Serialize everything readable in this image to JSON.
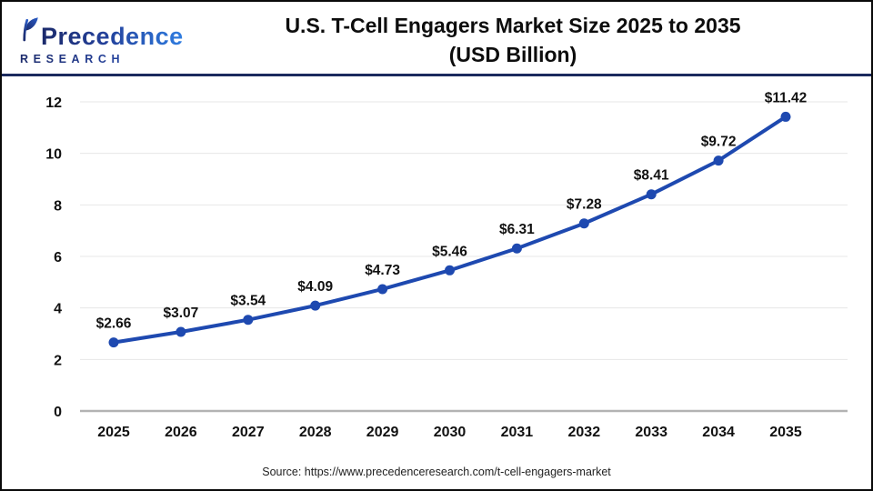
{
  "header": {
    "logo": {
      "brand": "Precedence",
      "sub": "RESEARCH"
    },
    "title_line1": "U.S. T-Cell Engagers Market Size 2025 to 2035",
    "title_line2": "(USD Billion)"
  },
  "icons": {
    "logo_leaf": "stylized-leaf-P"
  },
  "colors": {
    "line": "#1e49b0",
    "marker": "#1e49b0",
    "grid": "#e7e7e7",
    "zero_axis": "#b3b3b3",
    "separator": "#1b2a5e",
    "label_text": "#111111",
    "tick_text": "#111111",
    "source_text": "#222222",
    "brand_dark": "#1b2a6b",
    "brand_light": "#2f7de1"
  },
  "chart_data": {
    "type": "line",
    "title": "U.S. T-Cell Engagers Market Size 2025 to 2035 (USD Billion)",
    "categories": [
      "2025",
      "2026",
      "2027",
      "2028",
      "2029",
      "2030",
      "2031",
      "2032",
      "2033",
      "2034",
      "2035"
    ],
    "values": [
      2.66,
      3.07,
      3.54,
      4.09,
      4.73,
      5.46,
      6.31,
      7.28,
      8.41,
      9.72,
      11.42
    ],
    "data_labels": [
      "$2.66",
      "$3.07",
      "$3.54",
      "$4.09",
      "$4.73",
      "$5.46",
      "$6.31",
      "$7.28",
      "$8.41",
      "$9.72",
      "$11.42"
    ],
    "xlabel": "",
    "ylabel": "",
    "ylim": [
      0,
      12
    ],
    "ytick_step": 2,
    "ytick_labels": [
      "0",
      "2",
      "4",
      "6",
      "8",
      "10",
      "12"
    ],
    "grid": true,
    "legend": false,
    "marker": "circle"
  },
  "footer": {
    "source": "Source: https://www.precedenceresearch.com/t-cell-engagers-market"
  }
}
